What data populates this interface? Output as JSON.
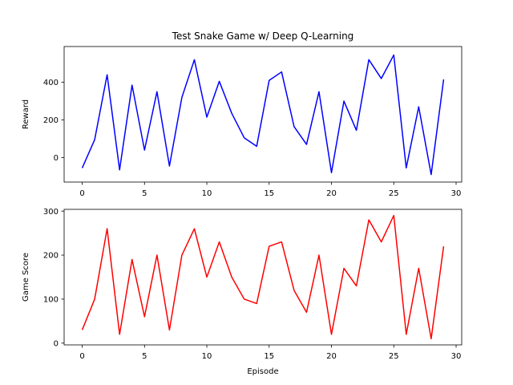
{
  "chart_data": [
    {
      "type": "line",
      "title": "Test Snake Game w/ Deep Q-Learning",
      "xlabel": "",
      "ylabel": "Reward",
      "xlim": [
        -1.45,
        30.45
      ],
      "ylim": [
        -130,
        590
      ],
      "xticks": [
        0,
        5,
        10,
        15,
        20,
        25,
        30
      ],
      "yticks": [
        0,
        200,
        400
      ],
      "x": [
        0,
        1,
        2,
        3,
        4,
        5,
        6,
        7,
        8,
        9,
        10,
        11,
        12,
        13,
        14,
        15,
        16,
        17,
        18,
        19,
        20,
        21,
        22,
        23,
        24,
        25,
        26,
        27,
        28,
        29
      ],
      "series": [
        {
          "color": "#0000ff",
          "values": [
            -55,
            95,
            440,
            -65,
            385,
            40,
            350,
            -45,
            320,
            520,
            215,
            405,
            235,
            105,
            60,
            410,
            455,
            165,
            70,
            350,
            -80,
            300,
            145,
            520,
            420,
            545,
            -55,
            270,
            -90,
            415
          ]
        }
      ],
      "grid": false
    },
    {
      "type": "line",
      "title": "",
      "xlabel": "Episode",
      "ylabel": "Game Score",
      "xlim": [
        -1.45,
        30.45
      ],
      "ylim": [
        -4,
        304
      ],
      "xticks": [
        0,
        5,
        10,
        15,
        20,
        25,
        30
      ],
      "yticks": [
        0,
        100,
        200,
        300
      ],
      "x": [
        0,
        1,
        2,
        3,
        4,
        5,
        6,
        7,
        8,
        9,
        10,
        11,
        12,
        13,
        14,
        15,
        16,
        17,
        18,
        19,
        20,
        21,
        22,
        23,
        24,
        25,
        26,
        27,
        28,
        29
      ],
      "series": [
        {
          "color": "#ff0000",
          "values": [
            30,
            100,
            260,
            20,
            190,
            60,
            200,
            30,
            200,
            260,
            150,
            230,
            150,
            100,
            90,
            220,
            230,
            120,
            70,
            200,
            20,
            170,
            130,
            280,
            230,
            290,
            20,
            170,
            10,
            220
          ]
        }
      ],
      "grid": false
    }
  ]
}
